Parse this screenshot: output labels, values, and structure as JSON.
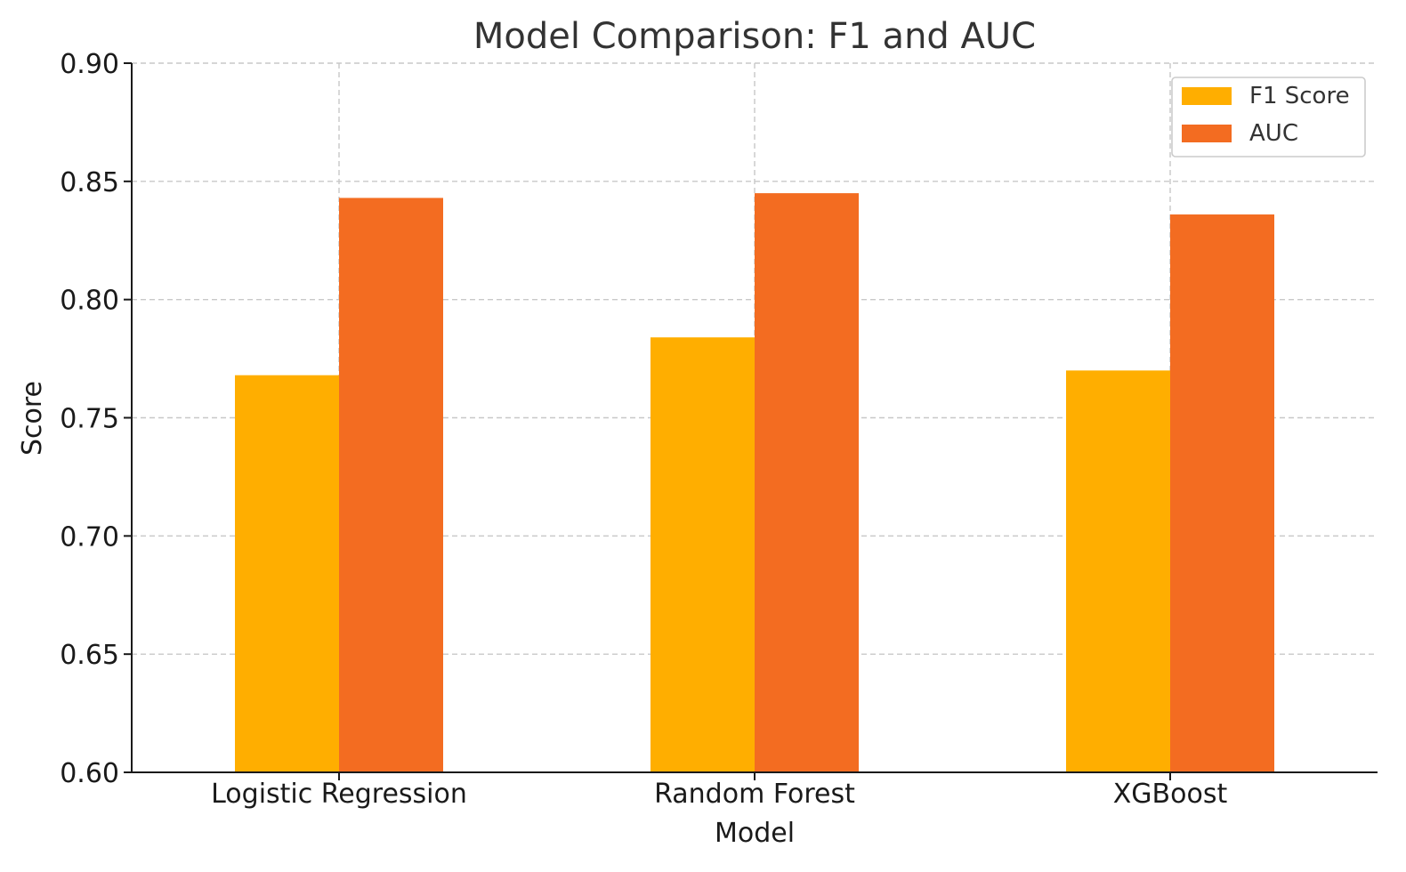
{
  "chart_data": {
    "type": "bar",
    "title": "Model Comparison: F1 and AUC",
    "xlabel": "Model",
    "ylabel": "Score",
    "categories": [
      "Logistic Regression",
      "Random Forest",
      "XGBoost"
    ],
    "series": [
      {
        "name": "F1 Score",
        "color": "#FFAE00",
        "values": [
          0.768,
          0.784,
          0.77
        ]
      },
      {
        "name": "AUC",
        "color": "#F36C21",
        "values": [
          0.843,
          0.845,
          0.836
        ]
      }
    ],
    "ylim": [
      0.6,
      0.9
    ],
    "yticks": [
      "0.60",
      "0.65",
      "0.70",
      "0.75",
      "0.80",
      "0.85",
      "0.90"
    ],
    "grid": true,
    "legend_position": "top-right"
  }
}
